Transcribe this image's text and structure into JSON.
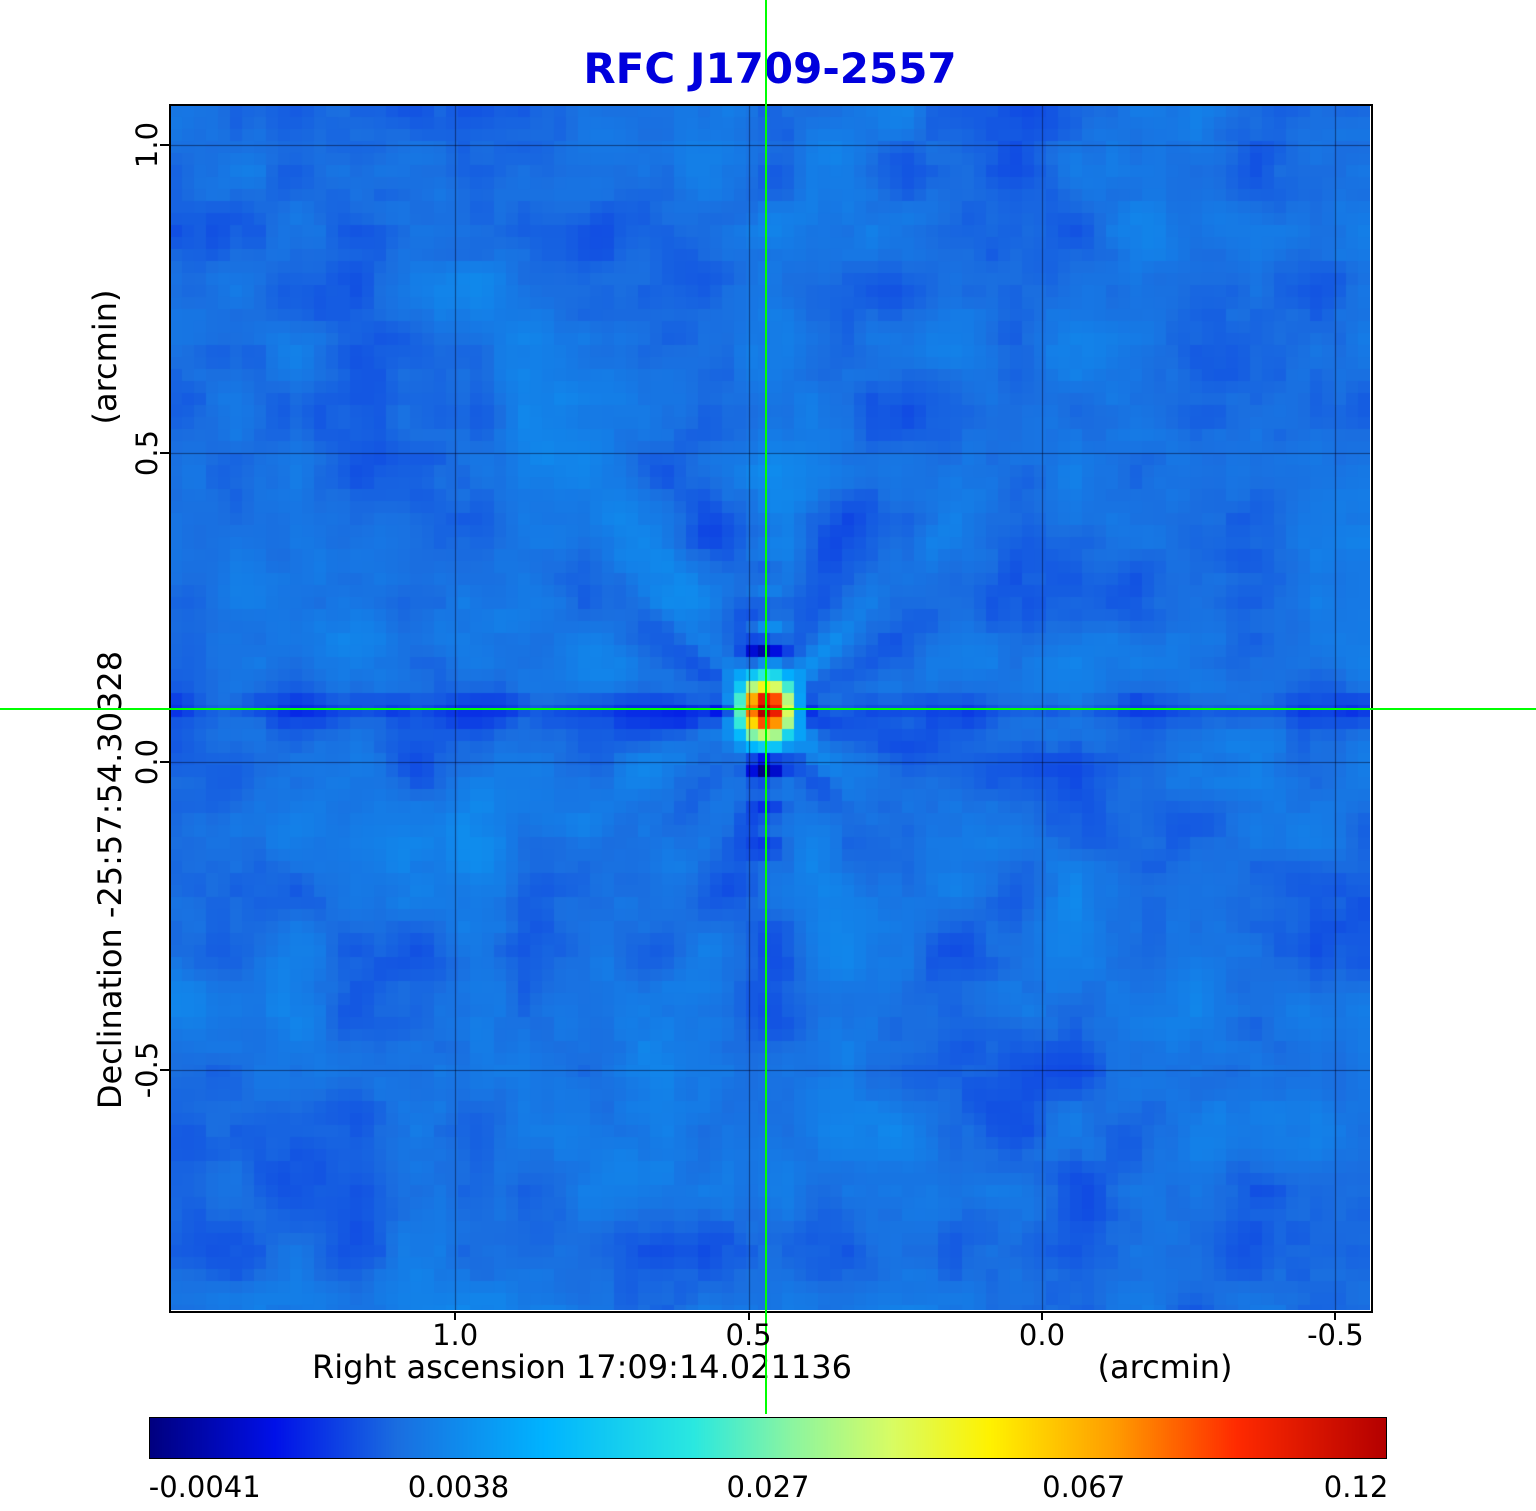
{
  "chart_data": {
    "type": "heatmap",
    "title": "RFC J1709-2557",
    "title_color": "#0000dd",
    "x_axis": {
      "label": "Right ascension  17:09:14.021136",
      "unit": "(arcmin)",
      "ticks": [
        1.0,
        0.5,
        0.0,
        -0.5
      ],
      "tick_labels": [
        "1.0",
        "0.5",
        "0.0",
        "-0.5"
      ],
      "range": [
        1.486,
        -0.559
      ]
    },
    "y_axis": {
      "label": "Declination  -25:57:54.30328",
      "unit": "(arcmin)",
      "ticks": [
        1.0,
        0.5,
        0.0,
        -0.5
      ],
      "tick_labels": [
        "1.0",
        "0.5",
        "0.0",
        "-0.5"
      ],
      "range": [
        1.065,
        -0.889
      ]
    },
    "colorbar": {
      "tick_labels": [
        "-0.0041",
        "0.0038",
        "0.027",
        "0.067",
        "0.12"
      ],
      "tick_values": [
        -0.0041,
        0.0038,
        0.027,
        0.067,
        0.12
      ],
      "tick_positions": [
        0.045,
        0.25,
        0.5,
        0.755,
        0.975
      ]
    },
    "colormap": {
      "stops": [
        {
          "t": 0.0,
          "c": "#000080"
        },
        {
          "t": 0.1,
          "c": "#0010e8"
        },
        {
          "t": 0.2,
          "c": "#1a6ee0"
        },
        {
          "t": 0.32,
          "c": "#00b4ff"
        },
        {
          "t": 0.44,
          "c": "#2ae8e0"
        },
        {
          "t": 0.52,
          "c": "#8cf5a0"
        },
        {
          "t": 0.6,
          "c": "#d8fc64"
        },
        {
          "t": 0.68,
          "c": "#fff200"
        },
        {
          "t": 0.78,
          "c": "#ff9d00"
        },
        {
          "t": 0.88,
          "c": "#ff2a00"
        },
        {
          "t": 1.0,
          "c": "#b40000"
        }
      ]
    },
    "stretch": {
      "values": [
        -0.0041,
        0.0038,
        0.027,
        0.067,
        0.12
      ],
      "t": [
        0.045,
        0.25,
        0.5,
        0.755,
        0.975
      ]
    },
    "background_level": 0.002,
    "source": {
      "peak": 0.125,
      "x_arcmin": 0.47,
      "y_arcmin": 0.085
    },
    "crosshair": {
      "x_arcmin": 0.47,
      "y_arcmin": 0.085,
      "color": "#00ff00"
    },
    "grid": true
  }
}
